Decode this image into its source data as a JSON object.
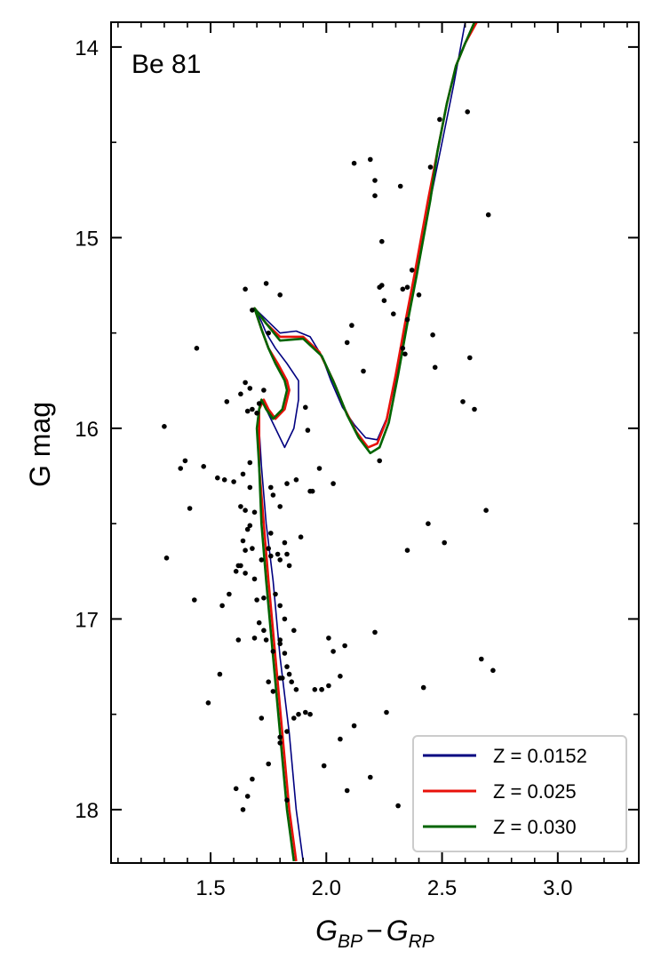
{
  "chart_data": {
    "type": "scatter",
    "title": "",
    "annotation": "Be 81",
    "xlabel_main": "G",
    "xlabel_sub1": "BP",
    "xlabel_minus": "−",
    "xlabel_sub2": "RP",
    "ylabel": "G mag",
    "xlim": [
      1.07,
      3.35
    ],
    "ylim": [
      18.28,
      13.87
    ],
    "y_inverted": true,
    "x_ticks": [
      1.5,
      2.0,
      2.5,
      3.0
    ],
    "x_tick_labels": [
      "1.5",
      "2.0",
      "2.5",
      "3.0"
    ],
    "y_ticks": [
      14,
      15,
      16,
      17,
      18
    ],
    "y_tick_labels": [
      "14",
      "15",
      "16",
      "17",
      "18"
    ],
    "grid": false,
    "legend_position": "bottom-right",
    "series": [
      {
        "name": "Z = 0.0152",
        "kind": "isochrone",
        "color": "#000080",
        "x": [
          1.9,
          1.87,
          1.84,
          1.8,
          1.77,
          1.74,
          1.72,
          1.71,
          1.71,
          1.72,
          1.74,
          1.78,
          1.82,
          1.86,
          1.88,
          1.88,
          1.83,
          1.78,
          1.74,
          1.72,
          1.69,
          1.8,
          1.87,
          1.93,
          1.98,
          2.02,
          2.07,
          2.12,
          2.17,
          2.22,
          2.26,
          2.3,
          2.34,
          2.38,
          2.41,
          2.45,
          2.5,
          2.55,
          2.6
        ],
        "y": [
          18.27,
          18.0,
          17.6,
          17.2,
          16.8,
          16.5,
          16.2,
          16.0,
          15.9,
          15.85,
          15.9,
          16.0,
          16.1,
          16.0,
          15.85,
          15.75,
          15.66,
          15.58,
          15.5,
          15.44,
          15.37,
          15.5,
          15.49,
          15.52,
          15.62,
          15.75,
          15.89,
          15.98,
          16.05,
          16.06,
          15.95,
          15.75,
          15.5,
          15.25,
          15.05,
          14.8,
          14.5,
          14.2,
          13.87
        ]
      },
      {
        "name": "Z = 0.025",
        "kind": "isochrone",
        "color": "#e8110a",
        "x": [
          1.87,
          1.84,
          1.81,
          1.78,
          1.75,
          1.73,
          1.71,
          1.71,
          1.71,
          1.73,
          1.75,
          1.78,
          1.82,
          1.84,
          1.83,
          1.79,
          1.75,
          1.72,
          1.69,
          1.74,
          1.8,
          1.9,
          1.97,
          2.03,
          2.08,
          2.13,
          2.18,
          2.22,
          2.26,
          2.3,
          2.34,
          2.38,
          2.41,
          2.44,
          2.48,
          2.52,
          2.56,
          2.6,
          2.65
        ],
        "y": [
          18.27,
          18.0,
          17.6,
          17.2,
          16.8,
          16.5,
          16.2,
          16.0,
          15.9,
          15.85,
          15.9,
          15.95,
          15.9,
          15.8,
          15.75,
          15.66,
          15.58,
          15.48,
          15.37,
          15.45,
          15.52,
          15.52,
          15.6,
          15.75,
          15.9,
          16.02,
          16.1,
          16.08,
          15.96,
          15.72,
          15.45,
          15.2,
          15.0,
          14.8,
          14.55,
          14.3,
          14.1,
          13.98,
          13.87
        ]
      },
      {
        "name": "Z = 0.030",
        "kind": "isochrone",
        "color": "#006400",
        "x": [
          1.86,
          1.83,
          1.8,
          1.77,
          1.74,
          1.72,
          1.71,
          1.7,
          1.71,
          1.72,
          1.74,
          1.77,
          1.81,
          1.83,
          1.82,
          1.78,
          1.75,
          1.72,
          1.69,
          1.74,
          1.8,
          1.9,
          1.98,
          2.04,
          2.09,
          2.14,
          2.19,
          2.23,
          2.27,
          2.31,
          2.35,
          2.39,
          2.42,
          2.45,
          2.48,
          2.52,
          2.56,
          2.6,
          2.64
        ],
        "y": [
          18.27,
          18.0,
          17.6,
          17.2,
          16.8,
          16.5,
          16.2,
          16.0,
          15.9,
          15.85,
          15.9,
          15.95,
          15.9,
          15.8,
          15.75,
          15.66,
          15.58,
          15.48,
          15.37,
          15.45,
          15.54,
          15.53,
          15.62,
          15.78,
          15.93,
          16.05,
          16.13,
          16.1,
          15.97,
          15.72,
          15.45,
          15.2,
          15.0,
          14.8,
          14.55,
          14.3,
          14.1,
          13.98,
          13.87
        ]
      }
    ],
    "points_name": "stars",
    "points_color": "#000000",
    "points": [
      [
        1.3,
        15.99
      ],
      [
        1.31,
        16.68
      ],
      [
        1.37,
        16.21
      ],
      [
        1.39,
        16.17
      ],
      [
        1.41,
        16.42
      ],
      [
        1.43,
        16.9
      ],
      [
        1.44,
        15.58
      ],
      [
        1.47,
        16.2
      ],
      [
        1.49,
        17.44
      ],
      [
        1.53,
        16.26
      ],
      [
        1.54,
        17.29
      ],
      [
        1.55,
        16.93
      ],
      [
        1.56,
        16.27
      ],
      [
        1.57,
        15.86
      ],
      [
        1.58,
        16.87
      ],
      [
        1.6,
        16.28
      ],
      [
        1.61,
        16.75
      ],
      [
        1.61,
        17.89
      ],
      [
        1.62,
        16.72
      ],
      [
        1.62,
        17.11
      ],
      [
        1.63,
        16.41
      ],
      [
        1.63,
        16.72
      ],
      [
        1.63,
        15.82
      ],
      [
        1.64,
        16.24
      ],
      [
        1.64,
        16.59
      ],
      [
        1.64,
        18.0
      ],
      [
        1.65,
        15.27
      ],
      [
        1.65,
        15.76
      ],
      [
        1.65,
        16.64
      ],
      [
        1.65,
        16.76
      ],
      [
        1.65,
        16.43
      ],
      [
        1.66,
        15.91
      ],
      [
        1.66,
        16.53
      ],
      [
        1.66,
        17.93
      ],
      [
        1.67,
        16.18
      ],
      [
        1.67,
        16.51
      ],
      [
        1.67,
        15.79
      ],
      [
        1.67,
        16.31
      ],
      [
        1.68,
        15.9
      ],
      [
        1.68,
        15.38
      ],
      [
        1.68,
        16.63
      ],
      [
        1.68,
        17.84
      ],
      [
        1.69,
        16.79
      ],
      [
        1.69,
        16.44
      ],
      [
        1.69,
        17.1
      ],
      [
        1.7,
        15.92
      ],
      [
        1.7,
        16.9
      ],
      [
        1.71,
        15.87
      ],
      [
        1.71,
        17.02
      ],
      [
        1.72,
        17.52
      ],
      [
        1.72,
        16.69
      ],
      [
        1.73,
        16.89
      ],
      [
        1.73,
        15.8
      ],
      [
        1.73,
        17.06
      ],
      [
        1.74,
        17.11
      ],
      [
        1.74,
        15.24
      ],
      [
        1.75,
        16.63
      ],
      [
        1.75,
        15.5
      ],
      [
        1.75,
        17.76
      ],
      [
        1.75,
        17.33
      ],
      [
        1.76,
        16.31
      ],
      [
        1.76,
        16.55
      ],
      [
        1.76,
        16.67
      ],
      [
        1.77,
        16.35
      ],
      [
        1.77,
        17.17
      ],
      [
        1.77,
        17.38
      ],
      [
        1.78,
        16.87
      ],
      [
        1.79,
        16.66
      ],
      [
        1.8,
        15.3
      ],
      [
        1.8,
        16.69
      ],
      [
        1.8,
        16.41
      ],
      [
        1.8,
        16.93
      ],
      [
        1.8,
        17.11
      ],
      [
        1.8,
        17.13
      ],
      [
        1.8,
        17.31
      ],
      [
        1.8,
        17.62
      ],
      [
        1.8,
        17.65
      ],
      [
        1.81,
        17.31
      ],
      [
        1.82,
        16.6
      ],
      [
        1.82,
        17.0
      ],
      [
        1.82,
        17.18
      ],
      [
        1.83,
        16.29
      ],
      [
        1.83,
        16.66
      ],
      [
        1.83,
        17.25
      ],
      [
        1.83,
        17.59
      ],
      [
        1.83,
        17.95
      ],
      [
        1.84,
        16.72
      ],
      [
        1.84,
        17.29
      ],
      [
        1.85,
        17.33
      ],
      [
        1.86,
        17.06
      ],
      [
        1.86,
        17.52
      ],
      [
        1.87,
        16.27
      ],
      [
        1.87,
        17.37
      ],
      [
        1.88,
        17.5
      ],
      [
        1.89,
        16.57
      ],
      [
        1.91,
        15.89
      ],
      [
        1.91,
        17.49
      ],
      [
        1.92,
        16.01
      ],
      [
        1.93,
        16.33
      ],
      [
        1.93,
        17.5
      ],
      [
        1.94,
        16.33
      ],
      [
        1.95,
        17.37
      ],
      [
        1.97,
        16.21
      ],
      [
        1.98,
        17.37
      ],
      [
        1.98,
        17.37
      ],
      [
        1.99,
        17.77
      ],
      [
        2.01,
        17.1
      ],
      [
        2.01,
        17.35
      ],
      [
        2.03,
        16.29
      ],
      [
        2.03,
        17.17
      ],
      [
        2.06,
        17.3
      ],
      [
        2.06,
        17.63
      ],
      [
        2.08,
        17.14
      ],
      [
        2.09,
        17.9
      ],
      [
        2.09,
        15.55
      ],
      [
        2.11,
        15.46
      ],
      [
        2.12,
        17.56
      ],
      [
        2.12,
        14.61
      ],
      [
        2.16,
        15.7
      ],
      [
        2.19,
        14.59
      ],
      [
        2.19,
        17.83
      ],
      [
        2.21,
        14.78
      ],
      [
        2.21,
        17.07
      ],
      [
        2.21,
        14.7
      ],
      [
        2.23,
        15.26
      ],
      [
        2.23,
        16.17
      ],
      [
        2.24,
        15.25
      ],
      [
        2.24,
        15.02
      ],
      [
        2.25,
        15.33
      ],
      [
        2.26,
        17.49
      ],
      [
        2.29,
        15.4
      ],
      [
        2.31,
        17.98
      ],
      [
        2.32,
        14.73
      ],
      [
        2.33,
        15.27
      ],
      [
        2.33,
        15.58
      ],
      [
        2.34,
        15.61
      ],
      [
        2.35,
        15.26
      ],
      [
        2.35,
        15.43
      ],
      [
        2.35,
        16.64
      ],
      [
        2.37,
        15.17
      ],
      [
        2.4,
        15.3
      ],
      [
        2.42,
        17.36
      ],
      [
        2.44,
        16.5
      ],
      [
        2.45,
        14.63
      ],
      [
        2.46,
        15.51
      ],
      [
        2.47,
        15.68
      ],
      [
        2.49,
        14.38
      ],
      [
        2.51,
        16.6
      ],
      [
        2.59,
        15.86
      ],
      [
        2.61,
        14.34
      ],
      [
        2.62,
        15.63
      ],
      [
        2.64,
        15.9
      ],
      [
        2.67,
        17.21
      ],
      [
        2.69,
        16.43
      ],
      [
        2.7,
        14.88
      ],
      [
        2.72,
        17.27
      ]
    ]
  },
  "colors": {
    "axis": "#000000",
    "legend_border": "#cccccc"
  }
}
